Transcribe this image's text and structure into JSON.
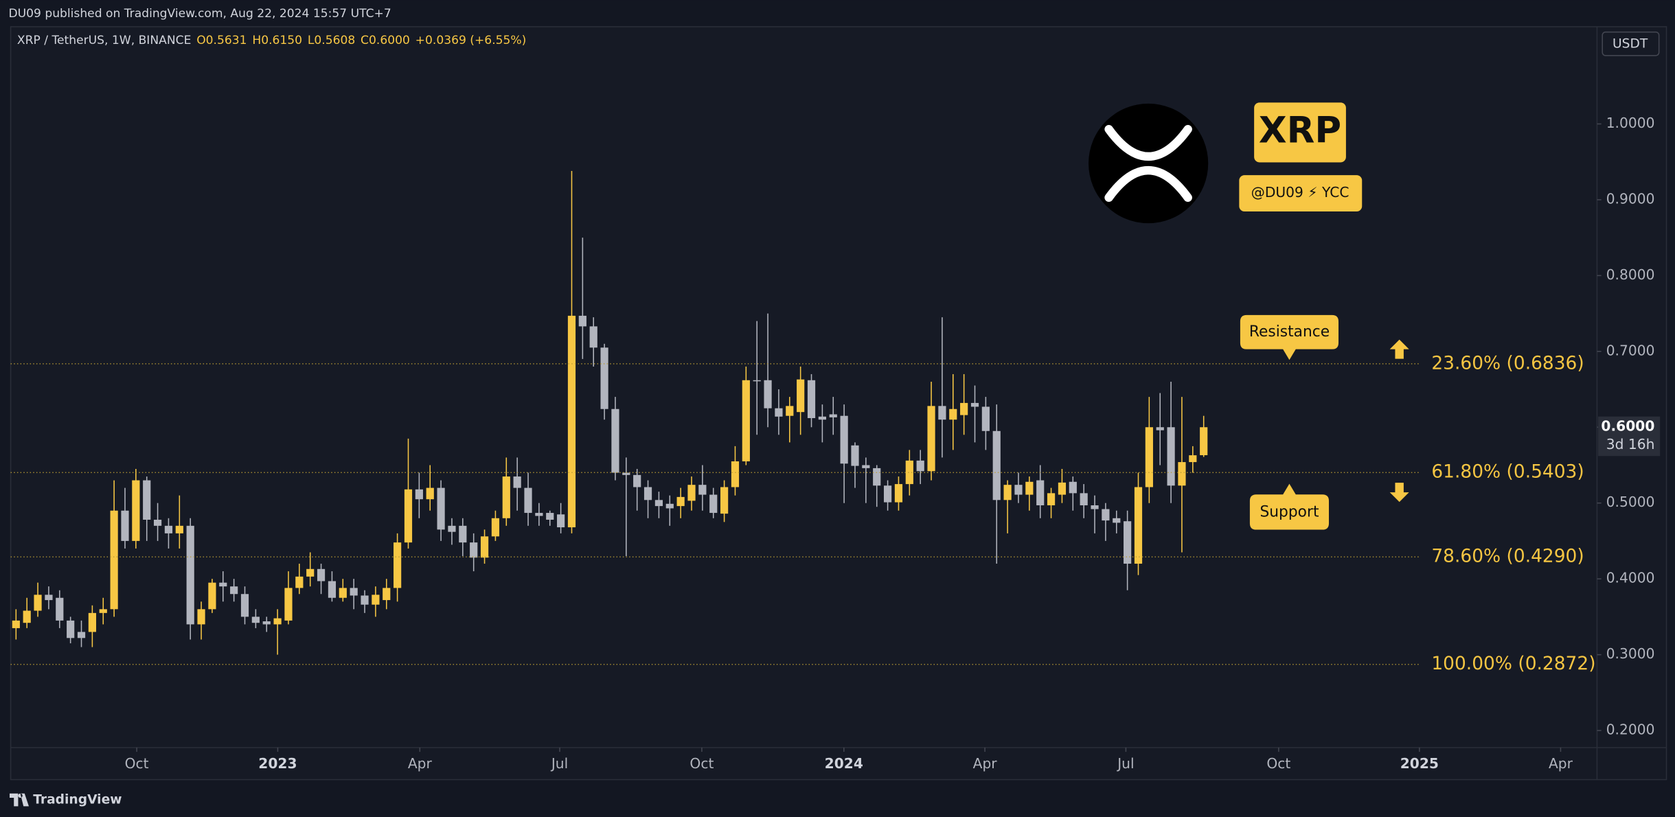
{
  "header": {
    "publisher": "DU09 published on TradingView.com, Aug 22, 2024 15:57 UTC+7"
  },
  "footer": {
    "brand": "TradingView"
  },
  "badge": {
    "ticker": "XRP",
    "handle": "@DU09 ⚡ YCC"
  },
  "chart_data": {
    "type": "candlestick",
    "title": "XRP / TetherUS, 1W, BINANCE",
    "ohlc_labels": [
      "O",
      "H",
      "L",
      "C"
    ],
    "ohlc_values": [
      "0.5631",
      "0.6150",
      "0.5608",
      "0.6000"
    ],
    "change": "+0.0369 (+6.55%)",
    "currency": "USDT",
    "up_color": "#f7c744",
    "down_color": "#b2b5be",
    "categories": [
      null,
      null,
      null,
      null,
      null,
      null,
      null,
      null,
      null,
      null,
      null,
      null,
      null,
      null,
      null,
      null,
      null,
      null,
      null,
      null,
      null,
      null,
      null,
      null,
      null,
      null,
      null,
      null,
      null,
      null,
      null,
      null,
      null,
      null,
      null,
      null,
      null,
      null,
      null,
      null,
      null,
      null,
      null,
      null,
      null,
      null,
      null,
      null,
      null,
      null,
      null,
      null,
      null,
      null,
      null,
      null,
      null,
      null,
      null,
      null,
      null,
      null,
      null,
      null,
      null,
      null,
      null,
      null,
      null,
      null,
      null,
      null,
      null,
      null,
      null,
      null,
      null,
      null,
      null,
      null,
      null,
      null,
      null,
      null,
      null,
      null,
      null,
      null,
      null,
      null,
      null,
      null,
      null,
      null,
      null,
      null,
      null,
      null,
      null,
      null,
      null,
      null,
      null,
      null,
      null,
      null,
      null,
      null,
      null,
      null
    ],
    "open": [
      0.335,
      0.342,
      0.358,
      0.379,
      0.375,
      0.345,
      0.33,
      0.33,
      0.355,
      0.36,
      0.49,
      0.45,
      0.53,
      0.478,
      0.47,
      0.46,
      0.47,
      0.34,
      0.36,
      0.395,
      0.39,
      0.38,
      0.35,
      0.344,
      0.34,
      0.345,
      0.388,
      0.403,
      0.413,
      0.397,
      0.375,
      0.388,
      0.378,
      0.366,
      0.372,
      0.388,
      0.448,
      0.518,
      0.505,
      0.52,
      0.47,
      0.47,
      0.448,
      0.428,
      0.456,
      0.48,
      0.535,
      0.52,
      0.487,
      0.487,
      0.485,
      0.468,
      0.747,
      0.733,
      0.705,
      0.624,
      0.54,
      0.537,
      0.521,
      0.504,
      0.499,
      0.496,
      0.503,
      0.524,
      0.511,
      0.486,
      0.521,
      0.555,
      0.662,
      0.662,
      0.625,
      0.615,
      0.62,
      0.662,
      0.614,
      0.617,
      0.615,
      0.576,
      0.55,
      0.546,
      0.523,
      0.501,
      0.525,
      0.556,
      0.542,
      0.628,
      0.61,
      0.616,
      0.632,
      0.627,
      0.595,
      0.504,
      0.524,
      0.511,
      0.53,
      0.497,
      0.511,
      0.528,
      0.513,
      0.497,
      0.492,
      0.48,
      0.476,
      0.42,
      0.521,
      0.6,
      0.6,
      0.523,
      0.554,
      0.5631
    ],
    "high": [
      0.36,
      0.375,
      0.395,
      0.39,
      0.385,
      0.35,
      0.345,
      0.365,
      0.375,
      0.53,
      0.52,
      0.545,
      0.535,
      0.5,
      0.48,
      0.51,
      0.48,
      0.37,
      0.4,
      0.41,
      0.4,
      0.39,
      0.36,
      0.35,
      0.36,
      0.41,
      0.42,
      0.435,
      0.42,
      0.41,
      0.4,
      0.4,
      0.385,
      0.39,
      0.4,
      0.46,
      0.585,
      0.54,
      0.55,
      0.53,
      0.48,
      0.48,
      0.46,
      0.465,
      0.49,
      0.56,
      0.56,
      0.54,
      0.5,
      0.49,
      0.5,
      0.938,
      0.85,
      0.745,
      0.71,
      0.64,
      0.56,
      0.545,
      0.53,
      0.515,
      0.51,
      0.52,
      0.535,
      0.55,
      0.52,
      0.53,
      0.575,
      0.68,
      0.74,
      0.75,
      0.65,
      0.64,
      0.68,
      0.67,
      0.63,
      0.64,
      0.63,
      0.58,
      0.56,
      0.55,
      0.53,
      0.535,
      0.57,
      0.57,
      0.66,
      0.745,
      0.67,
      0.67,
      0.655,
      0.64,
      0.63,
      0.53,
      0.54,
      0.535,
      0.55,
      0.52,
      0.545,
      0.535,
      0.525,
      0.51,
      0.5,
      0.49,
      0.49,
      0.54,
      0.64,
      0.645,
      0.66,
      0.64,
      0.575,
      0.615
    ],
    "low": [
      0.32,
      0.335,
      0.35,
      0.36,
      0.335,
      0.315,
      0.31,
      0.31,
      0.34,
      0.35,
      0.44,
      0.44,
      0.45,
      0.45,
      0.44,
      0.44,
      0.32,
      0.32,
      0.355,
      0.37,
      0.37,
      0.34,
      0.335,
      0.33,
      0.3,
      0.34,
      0.38,
      0.39,
      0.38,
      0.37,
      0.37,
      0.36,
      0.355,
      0.35,
      0.36,
      0.37,
      0.44,
      0.48,
      0.49,
      0.45,
      0.445,
      0.43,
      0.41,
      0.42,
      0.45,
      0.47,
      0.49,
      0.47,
      0.47,
      0.47,
      0.46,
      0.46,
      0.69,
      0.68,
      0.61,
      0.53,
      0.43,
      0.49,
      0.48,
      0.48,
      0.47,
      0.48,
      0.49,
      0.49,
      0.48,
      0.475,
      0.51,
      0.55,
      0.59,
      0.6,
      0.59,
      0.58,
      0.59,
      0.6,
      0.58,
      0.59,
      0.5,
      0.52,
      0.5,
      0.495,
      0.49,
      0.49,
      0.51,
      0.525,
      0.53,
      0.56,
      0.57,
      0.59,
      0.58,
      0.57,
      0.42,
      0.46,
      0.5,
      0.49,
      0.48,
      0.48,
      0.5,
      0.49,
      0.48,
      0.46,
      0.45,
      0.46,
      0.385,
      0.405,
      0.5,
      0.55,
      0.5,
      0.435,
      0.54,
      0.5608
    ],
    "close": [
      0.345,
      0.358,
      0.379,
      0.372,
      0.345,
      0.322,
      0.322,
      0.355,
      0.36,
      0.49,
      0.45,
      0.53,
      0.478,
      0.47,
      0.46,
      0.47,
      0.34,
      0.36,
      0.395,
      0.39,
      0.38,
      0.35,
      0.342,
      0.34,
      0.348,
      0.388,
      0.403,
      0.413,
      0.397,
      0.375,
      0.388,
      0.378,
      0.366,
      0.379,
      0.388,
      0.448,
      0.518,
      0.505,
      0.52,
      0.465,
      0.462,
      0.448,
      0.428,
      0.456,
      0.48,
      0.535,
      0.52,
      0.487,
      0.483,
      0.478,
      0.468,
      0.747,
      0.733,
      0.705,
      0.624,
      0.54,
      0.537,
      0.521,
      0.504,
      0.496,
      0.493,
      0.508,
      0.524,
      0.511,
      0.487,
      0.521,
      0.555,
      0.662,
      0.661,
      0.625,
      0.614,
      0.628,
      0.663,
      0.612,
      0.61,
      0.613,
      0.552,
      0.549,
      0.546,
      0.523,
      0.501,
      0.525,
      0.556,
      0.542,
      0.628,
      0.61,
      0.624,
      0.632,
      0.627,
      0.595,
      0.504,
      0.524,
      0.511,
      0.528,
      0.497,
      0.513,
      0.527,
      0.513,
      0.497,
      0.492,
      0.477,
      0.474,
      0.42,
      0.521,
      0.6,
      0.596,
      0.523,
      0.554,
      0.563,
      0.6
    ],
    "xlim": [
      -0.49,
      145.1
    ],
    "xticks": [
      {
        "value": 11.08,
        "label": "Oct"
      },
      {
        "value": 24.02,
        "label": "2023"
      },
      {
        "value": 37.06,
        "label": "Apr"
      },
      {
        "value": 49.9,
        "label": "Jul"
      },
      {
        "value": 62.94,
        "label": "Oct"
      },
      {
        "value": 75.98,
        "label": "2024"
      },
      {
        "value": 88.92,
        "label": "Apr"
      },
      {
        "value": 101.86,
        "label": "Jul"
      },
      {
        "value": 115.88,
        "label": "Oct"
      },
      {
        "value": 128.8,
        "label": "2025"
      },
      {
        "value": 141.76,
        "label": "Apr"
      }
    ],
    "ylim": [
      0.1775,
      1.1282
    ],
    "yticks": [
      {
        "value": 0.2,
        "label": "0.2000"
      },
      {
        "value": 0.3,
        "label": "0.3000"
      },
      {
        "value": 0.4,
        "label": "0.4000"
      },
      {
        "value": 0.5,
        "label": "0.5000"
      },
      {
        "value": 0.6,
        "label": "0.6000"
      },
      {
        "value": 0.7,
        "label": "0.7000"
      },
      {
        "value": 0.8,
        "label": "0.8000"
      },
      {
        "value": 0.9,
        "label": "0.9000"
      },
      {
        "value": 1.0,
        "label": "1.0000"
      }
    ],
    "last_price": {
      "value": 0.6,
      "label": "0.6000"
    },
    "countdown": "3d 16h",
    "levels": [
      {
        "value": 0.6836,
        "label": "23.60% (0.6836)"
      },
      {
        "value": 0.5403,
        "label": "61.80% (0.5403)"
      },
      {
        "value": 0.429,
        "label": "78.60% (0.4290)"
      },
      {
        "value": 0.2872,
        "label": "100.00% (0.2872)"
      }
    ],
    "annotations": [
      "Resistance",
      "Support"
    ]
  }
}
